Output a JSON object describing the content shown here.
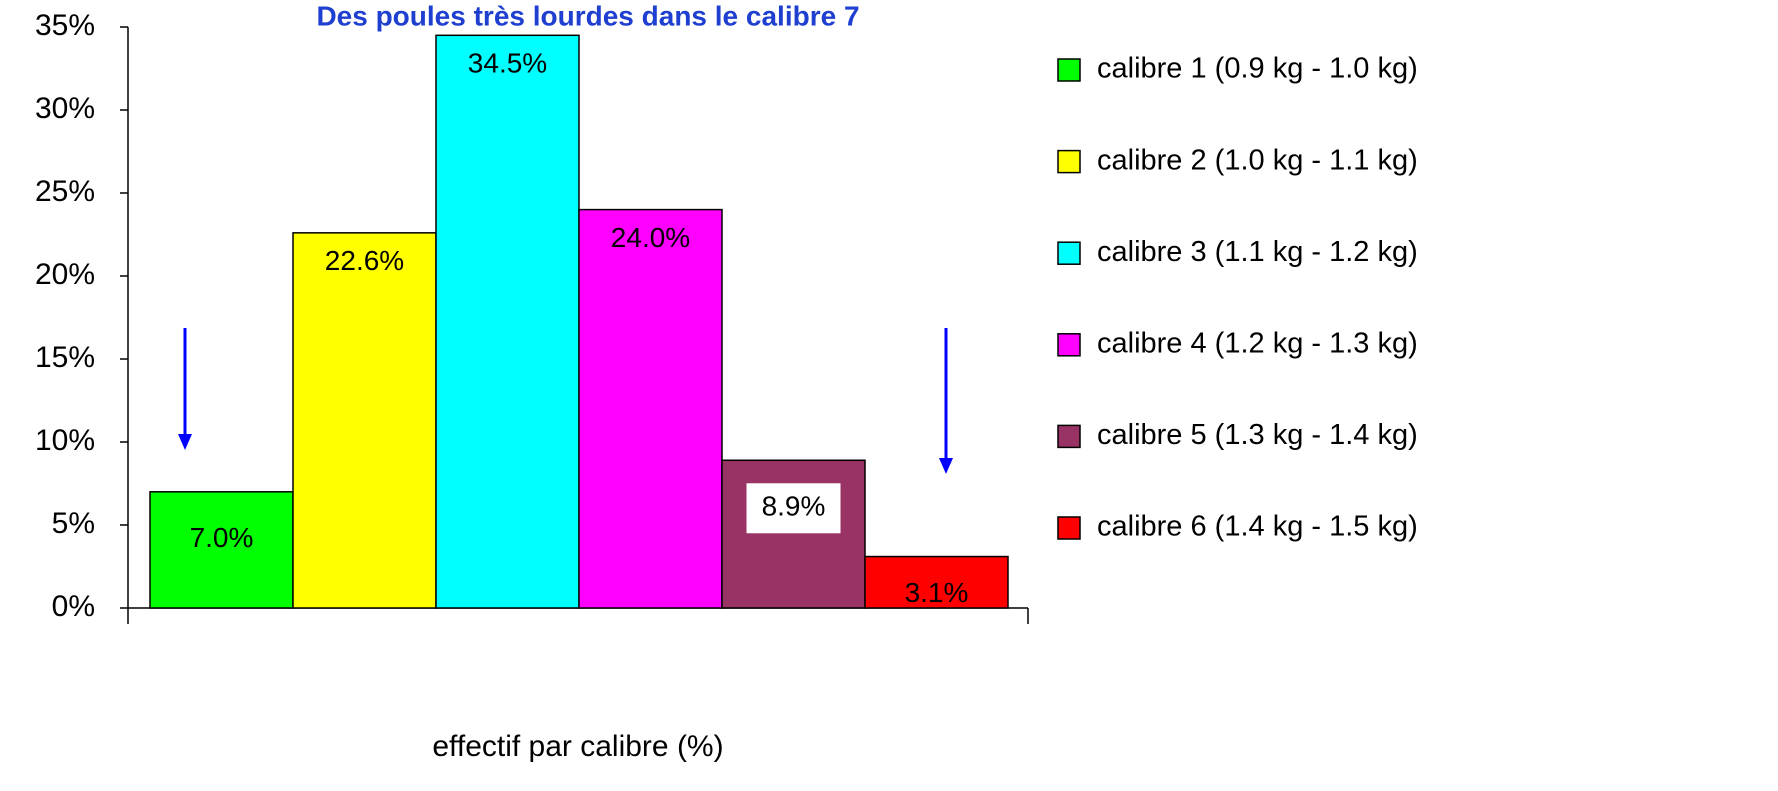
{
  "chart_data": {
    "type": "bar",
    "title": "Des poules très lourdes dans le calibre 7",
    "x_label": "effectif par calibre (%)",
    "categories": [
      null
    ],
    "series": [
      {
        "name": "calibre 1 (0.9 kg - 1.0 kg)",
        "color": "#00ff00",
        "values": [
          7.0
        ],
        "value_labels": [
          "7.0%"
        ]
      },
      {
        "name": "calibre 2 (1.0 kg - 1.1 kg)",
        "color": "#ffff00",
        "values": [
          22.6
        ],
        "value_labels": [
          "22.6%"
        ]
      },
      {
        "name": "calibre 3 (1.1 kg - 1.2 kg)",
        "color": "#00ffff",
        "values": [
          34.5
        ],
        "value_labels": [
          "34.5%"
        ]
      },
      {
        "name": "calibre 4 (1.2 kg - 1.3 kg)",
        "color": "#ff00ff",
        "values": [
          24.0
        ],
        "value_labels": [
          "24.0%"
        ]
      },
      {
        "name": "calibre 5 (1.3 kg - 1.4 kg)",
        "color": "#993366",
        "values": [
          8.9
        ],
        "value_labels": [
          "8.9%"
        ]
      },
      {
        "name": "calibre 6 (1.4 kg - 1.5 kg)",
        "color": "#ff0000",
        "values": [
          3.1
        ],
        "value_labels": [
          "3.1%"
        ]
      }
    ],
    "ylim": [
      0,
      35
    ],
    "yticks": [
      {
        "value": 0,
        "label": "0%"
      },
      {
        "value": 5,
        "label": "5%"
      },
      {
        "value": 10,
        "label": "10%"
      },
      {
        "value": 15,
        "label": "15%"
      },
      {
        "value": 20,
        "label": "20%"
      },
      {
        "value": 25,
        "label": "25%"
      },
      {
        "value": 30,
        "label": "30%"
      },
      {
        "value": 35,
        "label": "35%"
      }
    ],
    "legend": "right"
  }
}
